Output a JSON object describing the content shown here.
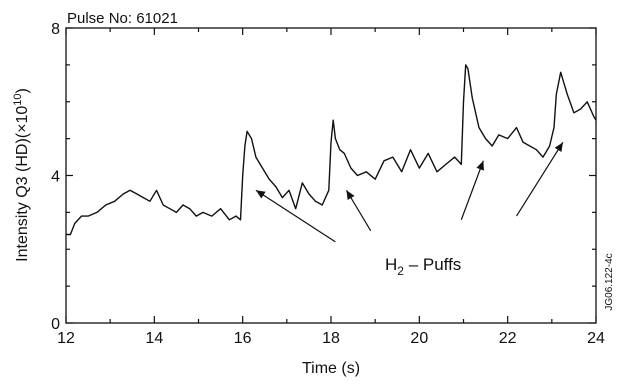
{
  "chart_data": {
    "type": "line",
    "title": "Pulse No: 61021",
    "xlabel": "Time (s)",
    "ylabel": {
      "base": "Intensity Q3 (HD)(×10",
      "exp": "10",
      "close": ")"
    },
    "xlim": [
      12,
      24
    ],
    "ylim": [
      0,
      8
    ],
    "x_ticks": [
      "12",
      "14",
      "16",
      "18",
      "20",
      "22",
      "24"
    ],
    "y_ticks": [
      "0",
      "4",
      "8"
    ],
    "grid": false,
    "legend": "none",
    "annotation": {
      "main": "H",
      "sub": "2",
      "rest": " – Puffs"
    },
    "figure_code": "JG06.122-4c",
    "series": [
      {
        "x": [
          12.0,
          12.1,
          12.2,
          12.35,
          12.5,
          12.7,
          12.9,
          13.1,
          13.3,
          13.45,
          13.6,
          13.75,
          13.9,
          14.05,
          14.2,
          14.35,
          14.5,
          14.65,
          14.8,
          14.95,
          15.1,
          15.3,
          15.5,
          15.7,
          15.85,
          15.95,
          16.0,
          16.05,
          16.1,
          16.2,
          16.3,
          16.45,
          16.6,
          16.75,
          16.9,
          17.05,
          17.2,
          17.35,
          17.5,
          17.65,
          17.8,
          17.95,
          18.0,
          18.05,
          18.1,
          18.2,
          18.3,
          18.45,
          18.6,
          18.8,
          19.0,
          19.2,
          19.4,
          19.6,
          19.8,
          20.0,
          20.2,
          20.4,
          20.6,
          20.8,
          20.95,
          21.0,
          21.05,
          21.1,
          21.2,
          21.35,
          21.5,
          21.65,
          21.8,
          22.0,
          22.2,
          22.35,
          22.5,
          22.65,
          22.8,
          22.95,
          23.05,
          23.1,
          23.2,
          23.35,
          23.5,
          23.65,
          23.8,
          23.95,
          24.0
        ],
        "y": [
          2.4,
          2.4,
          2.7,
          2.9,
          2.9,
          3.0,
          3.2,
          3.3,
          3.5,
          3.6,
          3.5,
          3.4,
          3.3,
          3.6,
          3.2,
          3.1,
          3.0,
          3.2,
          3.1,
          2.9,
          3.0,
          2.9,
          3.1,
          2.8,
          2.9,
          2.8,
          4.0,
          4.8,
          5.2,
          5.0,
          4.5,
          4.2,
          3.9,
          3.7,
          3.4,
          3.6,
          3.1,
          3.8,
          3.5,
          3.3,
          3.2,
          3.6,
          4.9,
          5.5,
          5.0,
          4.7,
          4.6,
          4.2,
          4.0,
          4.1,
          3.9,
          4.4,
          4.5,
          4.1,
          4.7,
          4.2,
          4.6,
          4.1,
          4.3,
          4.5,
          4.3,
          6.0,
          7.0,
          6.9,
          6.1,
          5.3,
          5.0,
          4.8,
          5.1,
          5.0,
          5.3,
          4.9,
          4.8,
          4.7,
          4.5,
          4.8,
          5.3,
          6.2,
          6.8,
          6.2,
          5.7,
          5.8,
          6.0,
          5.6,
          5.5
        ]
      }
    ],
    "arrows": [
      {
        "from": [
          18.1,
          2.2
        ],
        "to": [
          16.3,
          3.6
        ]
      },
      {
        "from": [
          18.9,
          2.5
        ],
        "to": [
          18.35,
          3.6
        ]
      },
      {
        "from": [
          20.95,
          2.8
        ],
        "to": [
          21.45,
          4.4
        ]
      },
      {
        "from": [
          22.2,
          2.9
        ],
        "to": [
          23.25,
          4.9
        ]
      }
    ]
  }
}
